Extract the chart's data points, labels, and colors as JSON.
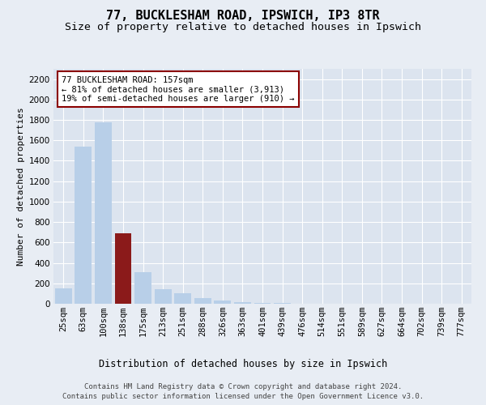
{
  "title1": "77, BUCKLESHAM ROAD, IPSWICH, IP3 8TR",
  "title2": "Size of property relative to detached houses in Ipswich",
  "xlabel": "Distribution of detached houses by size in Ipswich",
  "ylabel": "Number of detached properties",
  "annotation_line1": "77 BUCKLESHAM ROAD: 157sqm",
  "annotation_line2": "← 81% of detached houses are smaller (3,913)",
  "annotation_line3": "19% of semi-detached houses are larger (910) →",
  "footer1": "Contains HM Land Registry data © Crown copyright and database right 2024.",
  "footer2": "Contains public sector information licensed under the Open Government Licence v3.0.",
  "categories": [
    "25sqm",
    "63sqm",
    "100sqm",
    "138sqm",
    "175sqm",
    "213sqm",
    "251sqm",
    "288sqm",
    "326sqm",
    "363sqm",
    "401sqm",
    "439sqm",
    "476sqm",
    "514sqm",
    "551sqm",
    "589sqm",
    "627sqm",
    "664sqm",
    "702sqm",
    "739sqm",
    "777sqm"
  ],
  "values": [
    150,
    1540,
    1780,
    690,
    310,
    140,
    100,
    55,
    28,
    15,
    8,
    5,
    3,
    2,
    1,
    1,
    0,
    0,
    0,
    0,
    0
  ],
  "bar_color_default": "#b8cfe8",
  "bar_color_highlight": "#8b1a1a",
  "highlight_index": 3,
  "ylim": [
    0,
    2300
  ],
  "yticks": [
    0,
    200,
    400,
    600,
    800,
    1000,
    1200,
    1400,
    1600,
    1800,
    2000,
    2200
  ],
  "bg_color": "#e8edf4",
  "plot_bg_color": "#dce4ef",
  "annotation_box_color": "white",
  "annotation_border_color": "#8b0000",
  "grid_color": "white",
  "title1_fontsize": 11,
  "title2_fontsize": 9.5,
  "xlabel_fontsize": 8.5,
  "ylabel_fontsize": 8,
  "tick_fontsize": 7.5,
  "annotation_fontsize": 7.5,
  "footer_fontsize": 6.5
}
